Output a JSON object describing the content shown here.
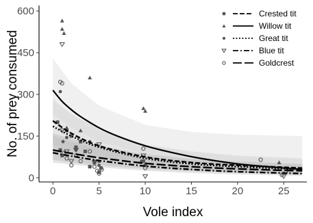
{
  "chart_data": {
    "type": "scatter",
    "xlabel": "Vole index",
    "ylabel": "No. of prey consumed",
    "xlim": [
      -1.5,
      27.5
    ],
    "ylim": [
      -15,
      620
    ],
    "x_ticks": [
      0,
      5,
      10,
      15,
      20,
      25
    ],
    "y_ticks": [
      0,
      150,
      300,
      450,
      600
    ],
    "grid": false,
    "legend_position": "top-right",
    "band_colors": [
      "#ebebeb",
      "#dedede",
      "#d1d1d1",
      "#c4c4c4",
      "#b8b8b8"
    ],
    "series": [
      {
        "name": "Crested tit",
        "line_style": "dashed",
        "marker": "square",
        "curve": {
          "x": [
            0,
            2,
            5,
            10,
            15,
            20,
            27
          ],
          "y": [
            205,
            160,
            115,
            75,
            55,
            45,
            35
          ]
        },
        "band": {
          "x": [
            0,
            2,
            5,
            10,
            15,
            20,
            27
          ],
          "lo": [
            140,
            110,
            80,
            50,
            35,
            28,
            20
          ],
          "hi": [
            290,
            230,
            170,
            115,
            90,
            75,
            65
          ]
        },
        "points": {
          "x": [
            0.5,
            0.8,
            1.0,
            1.5,
            2.0,
            2.5,
            3.0,
            3.5,
            4.0,
            4.5,
            5.0,
            5.2,
            9.8,
            10.0
          ],
          "y": [
            200,
            100,
            80,
            170,
            150,
            110,
            130,
            95,
            40,
            55,
            20,
            35,
            60,
            45
          ]
        }
      },
      {
        "name": "Willow tit",
        "line_style": "solid",
        "marker": "triangle-up",
        "curve": {
          "x": [
            0,
            1,
            2,
            3,
            5,
            7,
            10,
            13,
            16,
            20,
            24,
            27
          ],
          "y": [
            315,
            275,
            245,
            220,
            180,
            150,
            115,
            90,
            70,
            50,
            38,
            30
          ]
        },
        "band": {
          "x": [
            0,
            2,
            5,
            10,
            15,
            20,
            27
          ],
          "lo": [
            230,
            180,
            130,
            85,
            55,
            35,
            20
          ],
          "hi": [
            430,
            340,
            260,
            190,
            165,
            155,
            150
          ]
        },
        "points": {
          "x": [
            1.0,
            1.0,
            1.2,
            4.0,
            9.8,
            10.0,
            1.5,
            3.0,
            5.0,
            24.5
          ],
          "y": [
            565,
            535,
            520,
            360,
            250,
            240,
            180,
            170,
            60,
            55
          ]
        }
      },
      {
        "name": "Great tit",
        "line_style": "dotted",
        "marker": "circle-filled",
        "curve": {
          "x": [
            0,
            2,
            5,
            10,
            15,
            20,
            27
          ],
          "y": [
            185,
            150,
            110,
            70,
            50,
            40,
            30
          ]
        },
        "band": {
          "x": [
            0,
            2,
            5,
            10,
            15,
            20,
            27
          ],
          "lo": [
            120,
            95,
            70,
            45,
            30,
            22,
            15
          ],
          "hi": [
            280,
            230,
            175,
            120,
            95,
            80,
            70
          ]
        },
        "points": {
          "x": [
            0.8,
            1.1,
            1.5,
            2.5,
            4.0,
            4.5,
            5.0,
            9.6
          ],
          "y": [
            310,
            130,
            145,
            100,
            130,
            60,
            45,
            60
          ]
        }
      },
      {
        "name": "Blue tit",
        "line_style": "dash-dot",
        "marker": "triangle-down",
        "curve": {
          "x": [
            0,
            2,
            5,
            10,
            15,
            20,
            27
          ],
          "y": [
            90,
            78,
            62,
            42,
            30,
            22,
            15
          ]
        },
        "band": {
          "x": [
            0,
            2,
            5,
            10,
            15,
            20,
            27
          ],
          "lo": [
            55,
            48,
            38,
            25,
            17,
            12,
            7
          ],
          "hi": [
            150,
            130,
            105,
            75,
            60,
            50,
            42
          ]
        },
        "points": {
          "x": [
            1.0,
            1.0,
            1.5,
            2.0,
            2.5,
            4.5,
            5.0,
            9.8,
            10.0,
            25.0
          ],
          "y": [
            480,
            170,
            95,
            60,
            100,
            55,
            120,
            80,
            5,
            5
          ]
        }
      },
      {
        "name": "Goldcrest",
        "line_style": "long-dash",
        "marker": "circle-open",
        "curve": {
          "x": [
            0,
            2,
            5,
            10,
            15,
            20,
            27
          ],
          "y": [
            100,
            88,
            72,
            52,
            40,
            32,
            25
          ]
        },
        "band": {
          "x": [
            0,
            2,
            5,
            10,
            15,
            20,
            27
          ],
          "lo": [
            65,
            55,
            45,
            32,
            24,
            18,
            12
          ],
          "hi": [
            160,
            140,
            115,
            85,
            68,
            58,
            50
          ]
        },
        "points": {
          "x": [
            0.8,
            1.0,
            1.2,
            1.5,
            2.0,
            2.5,
            3.0,
            4.0,
            4.5,
            4.8,
            5.0,
            5.3,
            9.8,
            10.0,
            22.5,
            24.8,
            25.2,
            25.5
          ],
          "y": [
            345,
            340,
            90,
            70,
            45,
            80,
            60,
            95,
            40,
            25,
            15,
            30,
            105,
            35,
            65,
            10,
            20,
            30
          ]
        }
      }
    ]
  }
}
